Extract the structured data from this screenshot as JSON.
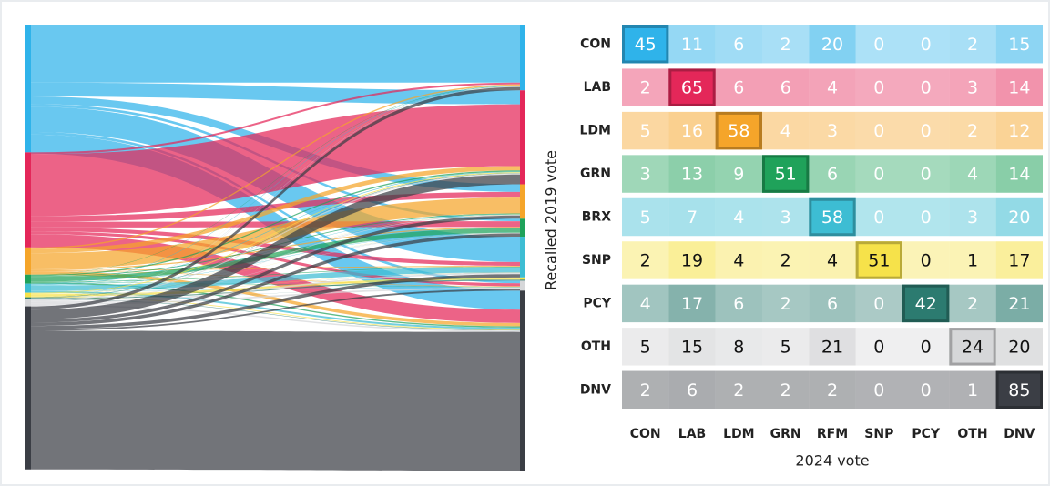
{
  "chart_data": {
    "type": "heatmap",
    "xlabel": "2024 vote",
    "ylabel": "Recalled 2019 vote",
    "categories": [
      "CON",
      "LAB",
      "LDM",
      "GRN",
      "RFM",
      "SNP",
      "PCY",
      "OTH",
      "DNV"
    ],
    "category_colors": [
      "#2fb3ea",
      "#e42759",
      "#f5a52a",
      "#1fa25a",
      "#3dbdd3",
      "#f6e24a",
      "#2c7b70",
      "#d6d7d9",
      "#3b3e45"
    ],
    "highlight_diagonal": true,
    "series": [
      {
        "name": "CON",
        "color": "#2fb3ea",
        "label_color": "#ffffff",
        "values": [
          45,
          11,
          6,
          2,
          20,
          0,
          0,
          2,
          15
        ]
      },
      {
        "name": "LAB",
        "color": "#e42759",
        "label_color": "#ffffff",
        "values": [
          2,
          65,
          6,
          6,
          4,
          0,
          0,
          3,
          14
        ]
      },
      {
        "name": "LDM",
        "color": "#f5a52a",
        "label_color": "#ffffff",
        "values": [
          5,
          16,
          58,
          4,
          3,
          0,
          0,
          2,
          12
        ]
      },
      {
        "name": "GRN",
        "color": "#1fa25a",
        "label_color": "#ffffff",
        "values": [
          3,
          13,
          9,
          51,
          6,
          0,
          0,
          4,
          14
        ]
      },
      {
        "name": "BRX",
        "color": "#3dbdd3",
        "label_color": "#ffffff",
        "values": [
          5,
          7,
          4,
          3,
          58,
          0,
          0,
          3,
          20
        ]
      },
      {
        "name": "SNP",
        "color": "#f6e24a",
        "label_color": "#111111",
        "values": [
          2,
          19,
          4,
          2,
          4,
          51,
          0,
          1,
          17
        ]
      },
      {
        "name": "PCY",
        "color": "#2c7b70",
        "label_color": "#ffffff",
        "values": [
          4,
          17,
          6,
          2,
          6,
          0,
          42,
          2,
          21
        ]
      },
      {
        "name": "OTH",
        "color": "#d6d7d9",
        "label_color": "#111111",
        "values": [
          5,
          15,
          8,
          5,
          21,
          0,
          0,
          24,
          20
        ]
      },
      {
        "name": "DNV",
        "color": "#3b3e45",
        "label_color": "#ffffff",
        "values": [
          2,
          6,
          2,
          2,
          2,
          0,
          0,
          1,
          85
        ]
      }
    ],
    "sankey": {
      "type": "sankey",
      "sizes": [
        28,
        21,
        6,
        2,
        2,
        1,
        0.5,
        1.5,
        36
      ]
    }
  }
}
